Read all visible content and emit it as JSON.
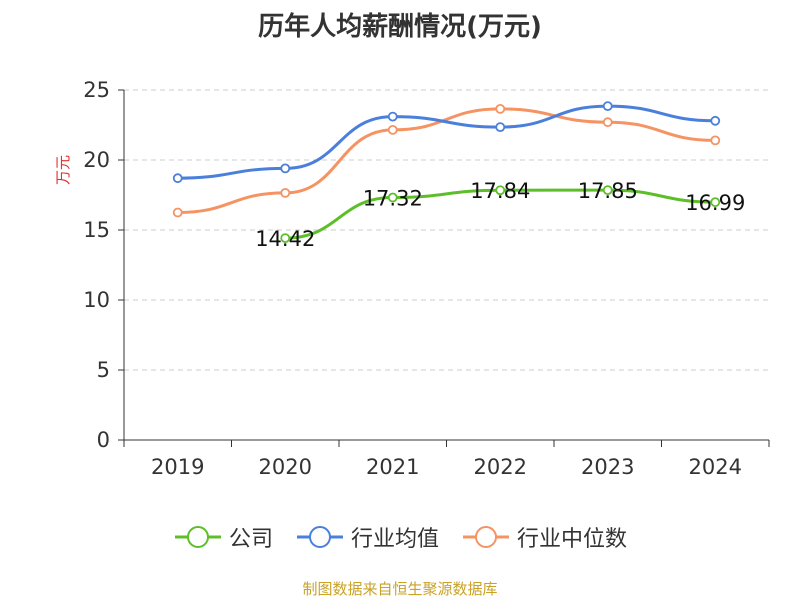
{
  "chart_data": {
    "type": "line",
    "title": "历年人均薪酬情况(万元)",
    "ylabel": "万元",
    "xlabel": "",
    "categories": [
      "2019",
      "2020",
      "2021",
      "2022",
      "2023",
      "2024"
    ],
    "ylim": [
      0,
      25
    ],
    "yticks": [
      0,
      5,
      10,
      15,
      20,
      25
    ],
    "grid": true,
    "legend_position": "bottom",
    "series": [
      {
        "name": "公司",
        "color": "#5cbf2a",
        "values": [
          null,
          14.42,
          17.32,
          17.84,
          17.85,
          16.99
        ],
        "labels": [
          "",
          "14.42",
          "17.32",
          "17.84",
          "17.85",
          "16.99"
        ]
      },
      {
        "name": "行业均值",
        "color": "#4a7fdc",
        "values": [
          18.7,
          19.4,
          23.1,
          22.35,
          23.85,
          22.8
        ]
      },
      {
        "name": "行业中位数",
        "color": "#f59362",
        "values": [
          16.25,
          17.65,
          22.15,
          23.65,
          22.7,
          21.4
        ]
      }
    ]
  },
  "footer": {
    "source": "制图数据来自恒生聚源数据库"
  },
  "colors": {
    "axis": "#333333",
    "grid": "#cccccc",
    "ylabel": "#e03030",
    "source": "#c9a227"
  }
}
